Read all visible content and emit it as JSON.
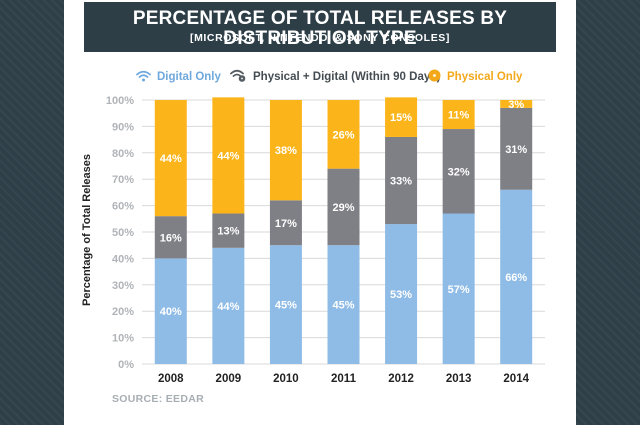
{
  "header": {
    "title": "PERCENTAGE OF TOTAL RELEASES BY DISTRIBUTION TYPE",
    "subtitle": "[MICROSOFT, NINTENDO, & SONY CONSOLES]"
  },
  "legend": {
    "digital": "Digital Only",
    "physical_digital": "Physical + Digital (Within 90 Days)",
    "physical": "Physical Only"
  },
  "source": "SOURCE: EEDAR",
  "colors": {
    "digital": "#8fbce6",
    "physical_digital": "#7f7f86",
    "physical": "#fbb51b",
    "grid": "#d9d9d9",
    "axis_text": "#b0b4b8"
  },
  "chart_data": {
    "type": "bar",
    "stacked": true,
    "title": "PERCENTAGE OF TOTAL RELEASES BY DISTRIBUTION TYPE",
    "subtitle": "[MICROSOFT, NINTENDO, & SONY CONSOLES]",
    "xlabel": "",
    "ylabel": "Percentage of Total Releases",
    "ylim": [
      0,
      100
    ],
    "yticks": [
      "0%",
      "10%",
      "20%",
      "30%",
      "40%",
      "50%",
      "60%",
      "70%",
      "80%",
      "90%",
      "100%"
    ],
    "categories": [
      "2008",
      "2009",
      "2010",
      "2011",
      "2012",
      "2013",
      "2014"
    ],
    "legend_position": "top",
    "series": [
      {
        "name": "Digital Only",
        "key": "digital",
        "values": [
          40,
          44,
          45,
          45,
          53,
          57,
          66
        ],
        "labels": [
          "40%",
          "44%",
          "45%",
          "45%",
          "53%",
          "57%",
          "66%"
        ]
      },
      {
        "name": "Physical + Digital (Within 90 Days)",
        "key": "physical_digital",
        "values": [
          16,
          13,
          17,
          29,
          33,
          32,
          31
        ],
        "labels": [
          "16%",
          "13%",
          "17%",
          "29%",
          "33%",
          "32%",
          "31%"
        ]
      },
      {
        "name": "Physical Only",
        "key": "physical",
        "values": [
          44,
          44,
          38,
          26,
          15,
          11,
          3
        ],
        "labels": [
          "44%",
          "44%",
          "38%",
          "26%",
          "15%",
          "11%",
          "3%"
        ]
      }
    ]
  }
}
